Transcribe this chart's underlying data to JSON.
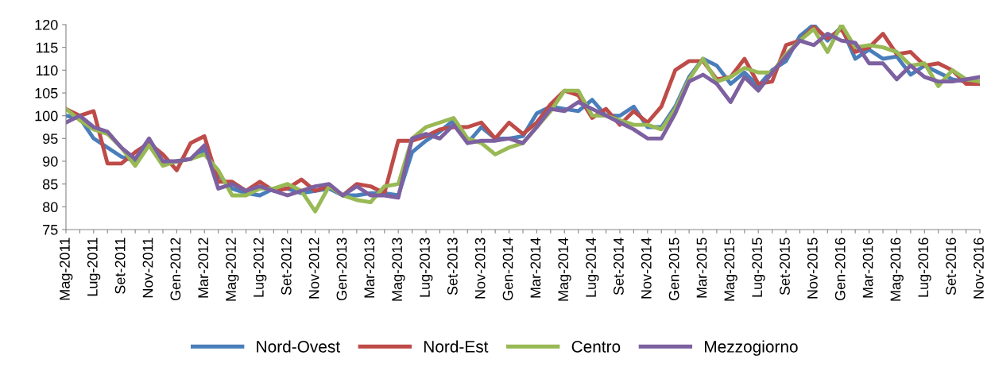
{
  "chart_data": {
    "type": "line",
    "categories": [
      "Mag-2011",
      null,
      "Lug-2011",
      null,
      "Set-2011",
      null,
      "Nov-2011",
      null,
      "Gen-2012",
      null,
      "Mar-2012",
      null,
      "Mag-2012",
      null,
      "Lug-2012",
      null,
      "Set-2012",
      null,
      "Nov-2012",
      null,
      "Gen-2013",
      null,
      "Mar-2013",
      null,
      "Mag-2013",
      null,
      "Lug-2013",
      null,
      "Set-2013",
      null,
      "Nov-2013",
      null,
      "Gen-2014",
      null,
      "Mar-2014",
      null,
      "Mag-2014",
      null,
      "Lug-2014",
      null,
      "Set-2014",
      null,
      "Nov-2014",
      null,
      "Gen-2015",
      null,
      "Mar-2015",
      null,
      "Mag-2015",
      null,
      "Lug-2015",
      null,
      "Set-2015",
      null,
      "Nov-2015",
      null,
      "Gen-2016",
      null,
      "Mar-2016",
      null,
      "Mag-2016",
      null,
      "Lug-2016",
      null,
      "Set-2016",
      null,
      "Nov-2016"
    ],
    "series": [
      {
        "name": "Nord-Ovest",
        "color": "#4a7ebb",
        "values": [
          100,
          99.5,
          95,
          93,
          91,
          90,
          94,
          89.5,
          90,
          90.5,
          92.5,
          87,
          84,
          83,
          82.5,
          84,
          84,
          83,
          83.5,
          84,
          82.5,
          82.5,
          83,
          83,
          82.5,
          92,
          94.5,
          96.5,
          99,
          94,
          97.5,
          95,
          95,
          95.5,
          100.5,
          102,
          101.5,
          101,
          103.5,
          100,
          100,
          102,
          97.5,
          97.5,
          102,
          108.5,
          112.5,
          111,
          107,
          109.5,
          106.5,
          110,
          112,
          117.5,
          120,
          116.5,
          119.5,
          112.5,
          114.5,
          112.5,
          113,
          109,
          111,
          109.5,
          108,
          107.5,
          107.5
        ]
      },
      {
        "name": "Nord-Est",
        "color": "#be4b48",
        "values": [
          101.5,
          100,
          101,
          89.5,
          89.5,
          92,
          94,
          91.5,
          88,
          94,
          95.5,
          85.5,
          85.5,
          83.5,
          85.5,
          83.5,
          84,
          86,
          83.5,
          84.5,
          82.5,
          85,
          84.5,
          83,
          94.5,
          94.5,
          95.5,
          97,
          97.5,
          97.5,
          98.5,
          95,
          98.5,
          96,
          98.5,
          102.5,
          105.5,
          104.5,
          99.5,
          101.5,
          98,
          101,
          98.5,
          102,
          110,
          112,
          112,
          108,
          108.5,
          112.5,
          107,
          107.5,
          115.5,
          116.5,
          119.5,
          117,
          119,
          114,
          115,
          118,
          113.5,
          114,
          111,
          111.5,
          110,
          107,
          107
        ]
      },
      {
        "name": "Centro",
        "color": "#98b954",
        "values": [
          101.5,
          99,
          97,
          96,
          93,
          89,
          93.5,
          89,
          90,
          90.5,
          91.5,
          88,
          82.5,
          82.5,
          84,
          84,
          85,
          83.5,
          79,
          84.5,
          82.5,
          81.5,
          81,
          84.5,
          85,
          95,
          97.5,
          98.5,
          99.5,
          95,
          94,
          91.5,
          93,
          94,
          97.5,
          101,
          105.5,
          105.5,
          100,
          100,
          99,
          98,
          98,
          97,
          101.5,
          108,
          112.5,
          107.5,
          108.5,
          110.5,
          109.5,
          109.5,
          113.5,
          116.5,
          119,
          114,
          120,
          115,
          115.5,
          115,
          114,
          111,
          111.5,
          106.5,
          110,
          108,
          107.5
        ]
      },
      {
        "name": "Mezzogiorno",
        "color": "#7d60a0",
        "values": [
          98.5,
          100,
          97.5,
          96.5,
          93,
          90.5,
          95,
          90,
          90,
          90.5,
          93.5,
          84,
          85,
          83.5,
          84.5,
          83.5,
          82.5,
          83.5,
          84.5,
          85,
          82.5,
          84.5,
          82.5,
          82.5,
          82,
          95,
          96,
          95,
          98,
          94,
          94.5,
          94.5,
          95,
          94,
          97.5,
          101.5,
          101,
          103,
          101.5,
          100,
          98.5,
          97,
          95,
          95,
          100.5,
          107.5,
          109,
          107,
          103,
          108.5,
          105.5,
          109.5,
          113,
          116.5,
          115.5,
          118,
          116.5,
          116,
          111.5,
          111.5,
          108,
          111,
          108.5,
          107.5,
          107.5,
          108,
          108.5
        ]
      }
    ],
    "ylim": [
      75,
      120
    ],
    "yticks": [
      75,
      80,
      85,
      90,
      95,
      100,
      105,
      110,
      115,
      120
    ],
    "legend": "bottom",
    "grid": false,
    "marker": "none",
    "line_style": "solid"
  }
}
